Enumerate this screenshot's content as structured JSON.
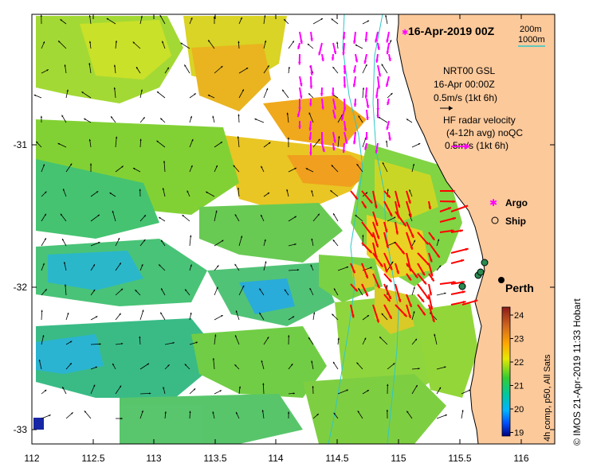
{
  "map": {
    "title": "16-Apr-2019 00Z",
    "contours": {
      "label_200": "200m",
      "label_1000": "1000m",
      "color_200": "#000000",
      "color_1000": "#2ec7c7"
    },
    "model": {
      "name": "NRT00 GSL",
      "time": "16-Apr 00:00Z",
      "scale": "0.5m/s (1kt 6h)",
      "arrow_color": "#000000"
    },
    "radar": {
      "title": "HF radar velocity",
      "subtitle": "(4-12h avg) noQC",
      "scale": "0.5m/s (1kt 6h)",
      "arrow_color": "#ff00ff"
    },
    "legend": {
      "argo": "Argo",
      "ship": "Ship"
    },
    "city": "Perth",
    "x_ticks": [
      "112",
      "112.5",
      "113",
      "113.5",
      "114",
      "114.5",
      "115",
      "115.5",
      "116"
    ],
    "y_ticks": [
      "-31",
      "-32",
      "-33"
    ],
    "colorbar": {
      "ticks": [
        "24",
        "23",
        "22",
        "21",
        "20",
        "19"
      ],
      "label": "4h comp, p50, All Sats",
      "colors": [
        "#8b1a1a",
        "#d2691e",
        "#ffa500",
        "#e8e800",
        "#32cd32",
        "#00c8a0",
        "#00b4ff",
        "#0050ff",
        "#000080"
      ]
    },
    "credit": "© IMOS 21-Apr-2019 11:33 Hobart",
    "colors": {
      "land": "#fcc99b",
      "ocean": "#ffffff",
      "red_vector": "#ff0000"
    }
  }
}
